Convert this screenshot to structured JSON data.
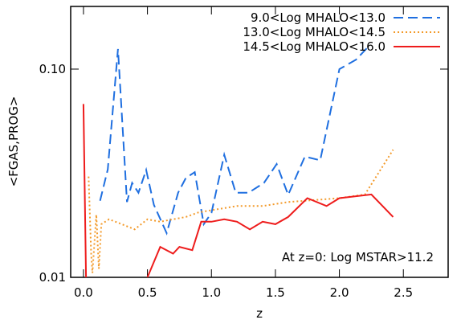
{
  "chart_data": {
    "type": "line",
    "xlabel": "z",
    "ylabel": "<FGAS,PROG>",
    "annotation": "At z=0: Log MSTAR>11.2",
    "xlim": [
      -0.1,
      2.85
    ],
    "ylim": [
      0.01,
      0.2
    ],
    "log_y": true,
    "xticks": [
      {
        "value": 0,
        "label": "0.0"
      },
      0.5,
      {
        "value": 1,
        "label": "1.0"
      },
      1.5,
      {
        "value": 2,
        "label": "2.0"
      },
      2.5
    ],
    "yticks": [
      0.01,
      {
        "value": 0.1,
        "label": "0.10"
      }
    ],
    "legend": "upper right",
    "series": [
      {
        "name": "9.0<Log MHALO<13.0",
        "color": "#1f6fe0",
        "dash": "dashed",
        "x": [
          0.13,
          0.19,
          0.27,
          0.34,
          0.38,
          0.43,
          0.49,
          0.55,
          0.65,
          0.74,
          0.8,
          0.87,
          0.94,
          1.0,
          1.1,
          1.19,
          1.29,
          1.41,
          1.51,
          1.6,
          1.73,
          1.85,
          2.0,
          2.13,
          2.22
        ],
        "values": [
          0.0233,
          0.033,
          0.125,
          0.023,
          0.0284,
          0.0255,
          0.0328,
          0.0223,
          0.0163,
          0.0255,
          0.03,
          0.032,
          0.018,
          0.0204,
          0.0388,
          0.0255,
          0.0255,
          0.0284,
          0.035,
          0.0249,
          0.038,
          0.0365,
          0.1,
          0.111,
          0.127
        ]
      },
      {
        "name": "13.0<Log MHALO<14.5",
        "color": "#f39a2a",
        "dash": "dotted",
        "x": [
          0.04,
          0.06,
          0.07,
          0.1,
          0.12,
          0.14,
          0.2,
          0.3,
          0.4,
          0.5,
          0.6,
          0.7,
          0.8,
          0.9,
          1.0,
          1.2,
          1.4,
          1.6,
          1.8,
          2.0,
          2.2,
          2.42
        ],
        "values": [
          0.0305,
          0.013,
          0.0105,
          0.02,
          0.011,
          0.018,
          0.019,
          0.018,
          0.017,
          0.019,
          0.0185,
          0.019,
          0.0195,
          0.0205,
          0.021,
          0.022,
          0.022,
          0.023,
          0.0235,
          0.024,
          0.025,
          0.041
        ]
      },
      {
        "name": "14.5<Log MHALO<16.0",
        "color": "#ee1c1c",
        "dash": "solid",
        "x": [
          0.0,
          0.02,
          0.4,
          0.5,
          0.6,
          0.7,
          0.75,
          0.85,
          0.92,
          1.0,
          1.1,
          1.2,
          1.3,
          1.4,
          1.5,
          1.6,
          1.75,
          1.9,
          2.0,
          2.25,
          2.42
        ],
        "values": [
          0.068,
          0.01,
          null,
          0.01,
          0.014,
          0.013,
          0.014,
          0.0135,
          0.0185,
          0.0185,
          0.019,
          0.0185,
          0.017,
          0.0185,
          0.018,
          0.0195,
          0.024,
          0.022,
          0.024,
          0.025,
          0.0195
        ]
      }
    ]
  }
}
